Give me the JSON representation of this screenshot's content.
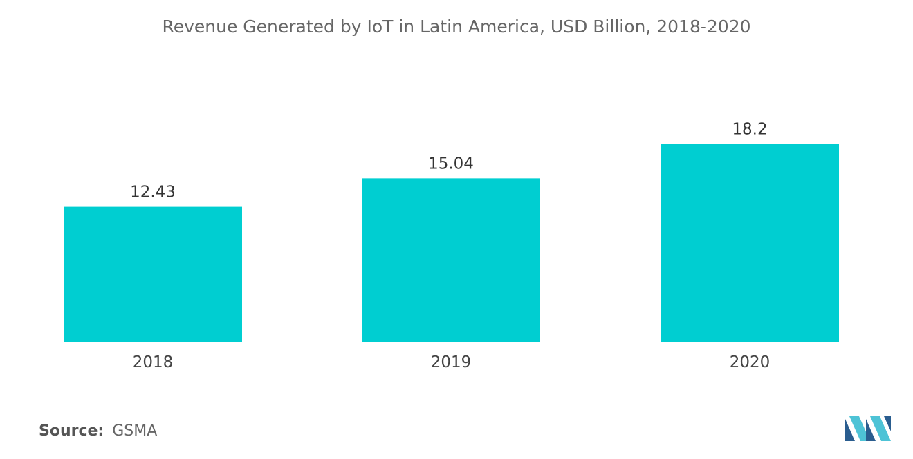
{
  "title": "Revenue Generated by IoT in Latin America, USD Billion, 2018-2020",
  "source": {
    "label": "Source:",
    "value": "GSMA"
  },
  "colors": {
    "bar": "#00CED1",
    "logo_dark": "#2a5d8f",
    "logo_light": "#4ec3d6"
  },
  "logo": {
    "icon": "mordor-intelligence-logo-icon"
  },
  "chart_data": {
    "type": "bar",
    "title": "Revenue Generated by IoT in Latin America, USD Billion, 2018-2020",
    "categories": [
      "2018",
      "2019",
      "2020"
    ],
    "values": [
      12.43,
      15.04,
      18.2
    ],
    "value_labels": [
      "12.43",
      "15.04",
      "18.2"
    ],
    "xlabel": "",
    "ylabel": "",
    "ylim": [
      0,
      20
    ],
    "grid": false,
    "legend": "none"
  }
}
